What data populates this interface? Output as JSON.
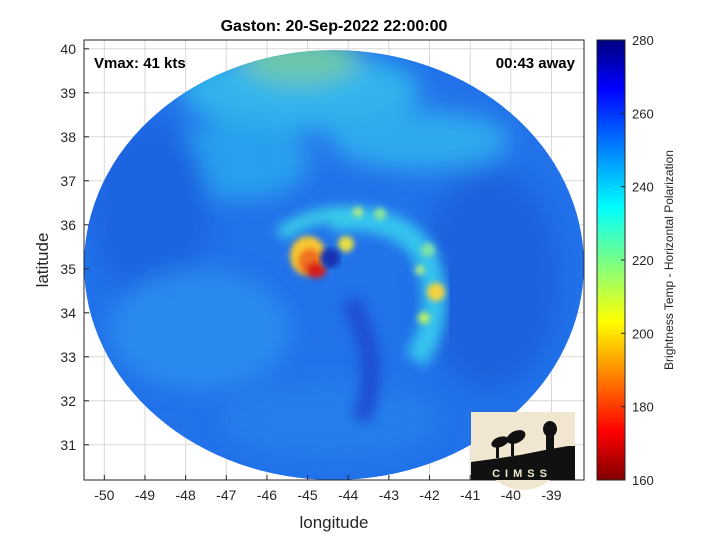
{
  "figure": {
    "title": "Gaston: 20-Sep-2022 22:00:00",
    "vmax_label": "Vmax: 41 kts",
    "away_label": "00:43 away",
    "xlabel": "longitude",
    "ylabel": "latitude",
    "colorbar_label": "Brightness Temp - Horizontal Polarization",
    "logo_text": "CIMSS"
  },
  "axes": {
    "x_ticks": [
      -50,
      -49,
      -48,
      -47,
      -46,
      -45,
      -44,
      -43,
      -42,
      -41,
      -40,
      -39
    ],
    "y_ticks": [
      31,
      32,
      33,
      34,
      35,
      36,
      37,
      38,
      39,
      40
    ],
    "xlim": [
      -50.5,
      -38.2
    ],
    "ylim": [
      30.2,
      40.2
    ],
    "colorbar_ticks": [
      160,
      180,
      200,
      220,
      240,
      260,
      280
    ],
    "colorbar_range": [
      160,
      280
    ],
    "colormap": "jet",
    "grid": true
  },
  "colors": {
    "background_blue": "#1e6fe6",
    "warm_core": "#e8281a",
    "plot_bg": "#ffffff",
    "grid": "#d8d8d8",
    "logo_bg": "#f1e7d0"
  }
}
